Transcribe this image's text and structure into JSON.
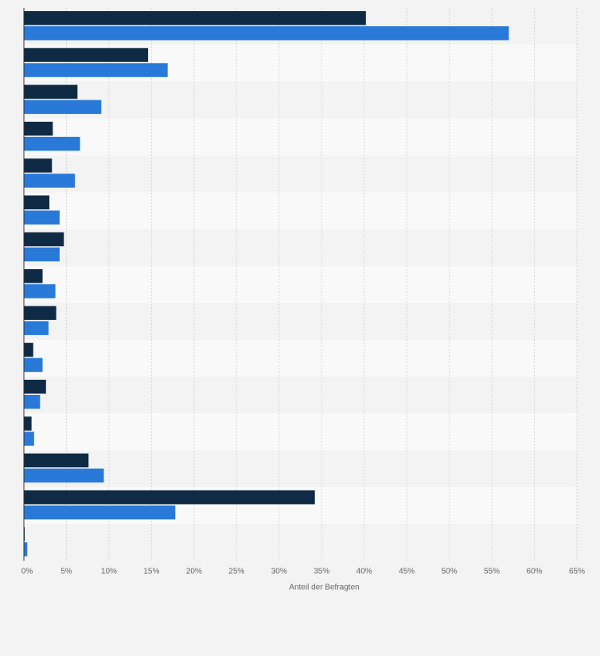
{
  "chart_data": {
    "type": "bar",
    "orientation": "horizontal",
    "categories": [
      "",
      "",
      "",
      "",
      "",
      "",
      "",
      "",
      "",
      "",
      "",
      "",
      "",
      "",
      ""
    ],
    "series": [
      {
        "color": "#0f2a44",
        "values": [
          40.2,
          14.6,
          6.3,
          3.4,
          3.3,
          3.0,
          4.7,
          2.2,
          3.8,
          1.1,
          2.6,
          0.9,
          7.6,
          34.2,
          0.1
        ]
      },
      {
        "color": "#2979d8",
        "values": [
          57.0,
          16.9,
          9.1,
          6.6,
          6.0,
          4.2,
          4.2,
          3.7,
          2.9,
          2.2,
          1.9,
          1.2,
          9.4,
          17.8,
          0.4
        ]
      }
    ],
    "x_ticks": [
      "0%",
      "5%",
      "10%",
      "15%",
      "20%",
      "25%",
      "30%",
      "35%",
      "40%",
      "45%",
      "50%",
      "55%",
      "60%",
      "65%"
    ],
    "xlabel": "Anteil der Befragten",
    "xlim": [
      0,
      65
    ],
    "grid": true,
    "legend": "none"
  }
}
